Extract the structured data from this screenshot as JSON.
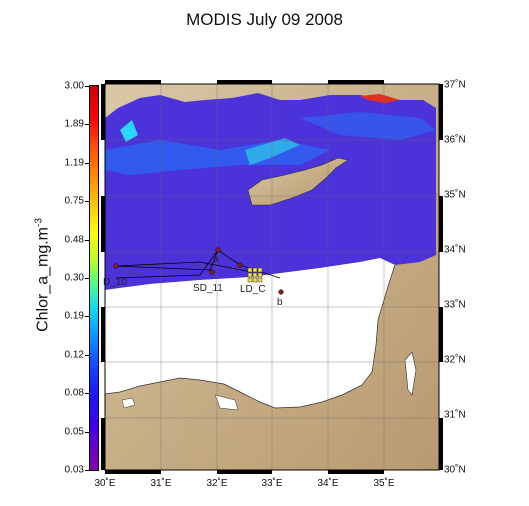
{
  "title": "MODIS July 09 2008",
  "colorbar": {
    "label": "Chlor_a_mg.m^-3",
    "labels": [
      "3.00",
      "1.89",
      "1.19",
      "0.75",
      "0.48",
      "0.30",
      "0.19",
      "0.12",
      "0.08",
      "0.05",
      "0.03"
    ]
  },
  "axes": {
    "lon_labels": [
      "30˚E",
      "31˚E",
      "32˚E",
      "33˚E",
      "34˚E",
      "35˚E"
    ],
    "lat_labels": [
      "37˚N",
      "36˚N",
      "35˚N",
      "34˚N",
      "33˚N",
      "32˚N",
      "31˚N",
      "30˚N"
    ]
  },
  "stations": {
    "d10": "D_10",
    "sd11": "SD_11",
    "ld_c": "LD_C",
    "a": "a",
    "b": "b"
  },
  "colors": {
    "sea_chl_low": "#5a2ad6",
    "sea_chl_mid": "#2a4cf0",
    "nodata": "#ffffff",
    "land": "#c9b493",
    "track": "#000000",
    "station": "#8b0000"
  }
}
